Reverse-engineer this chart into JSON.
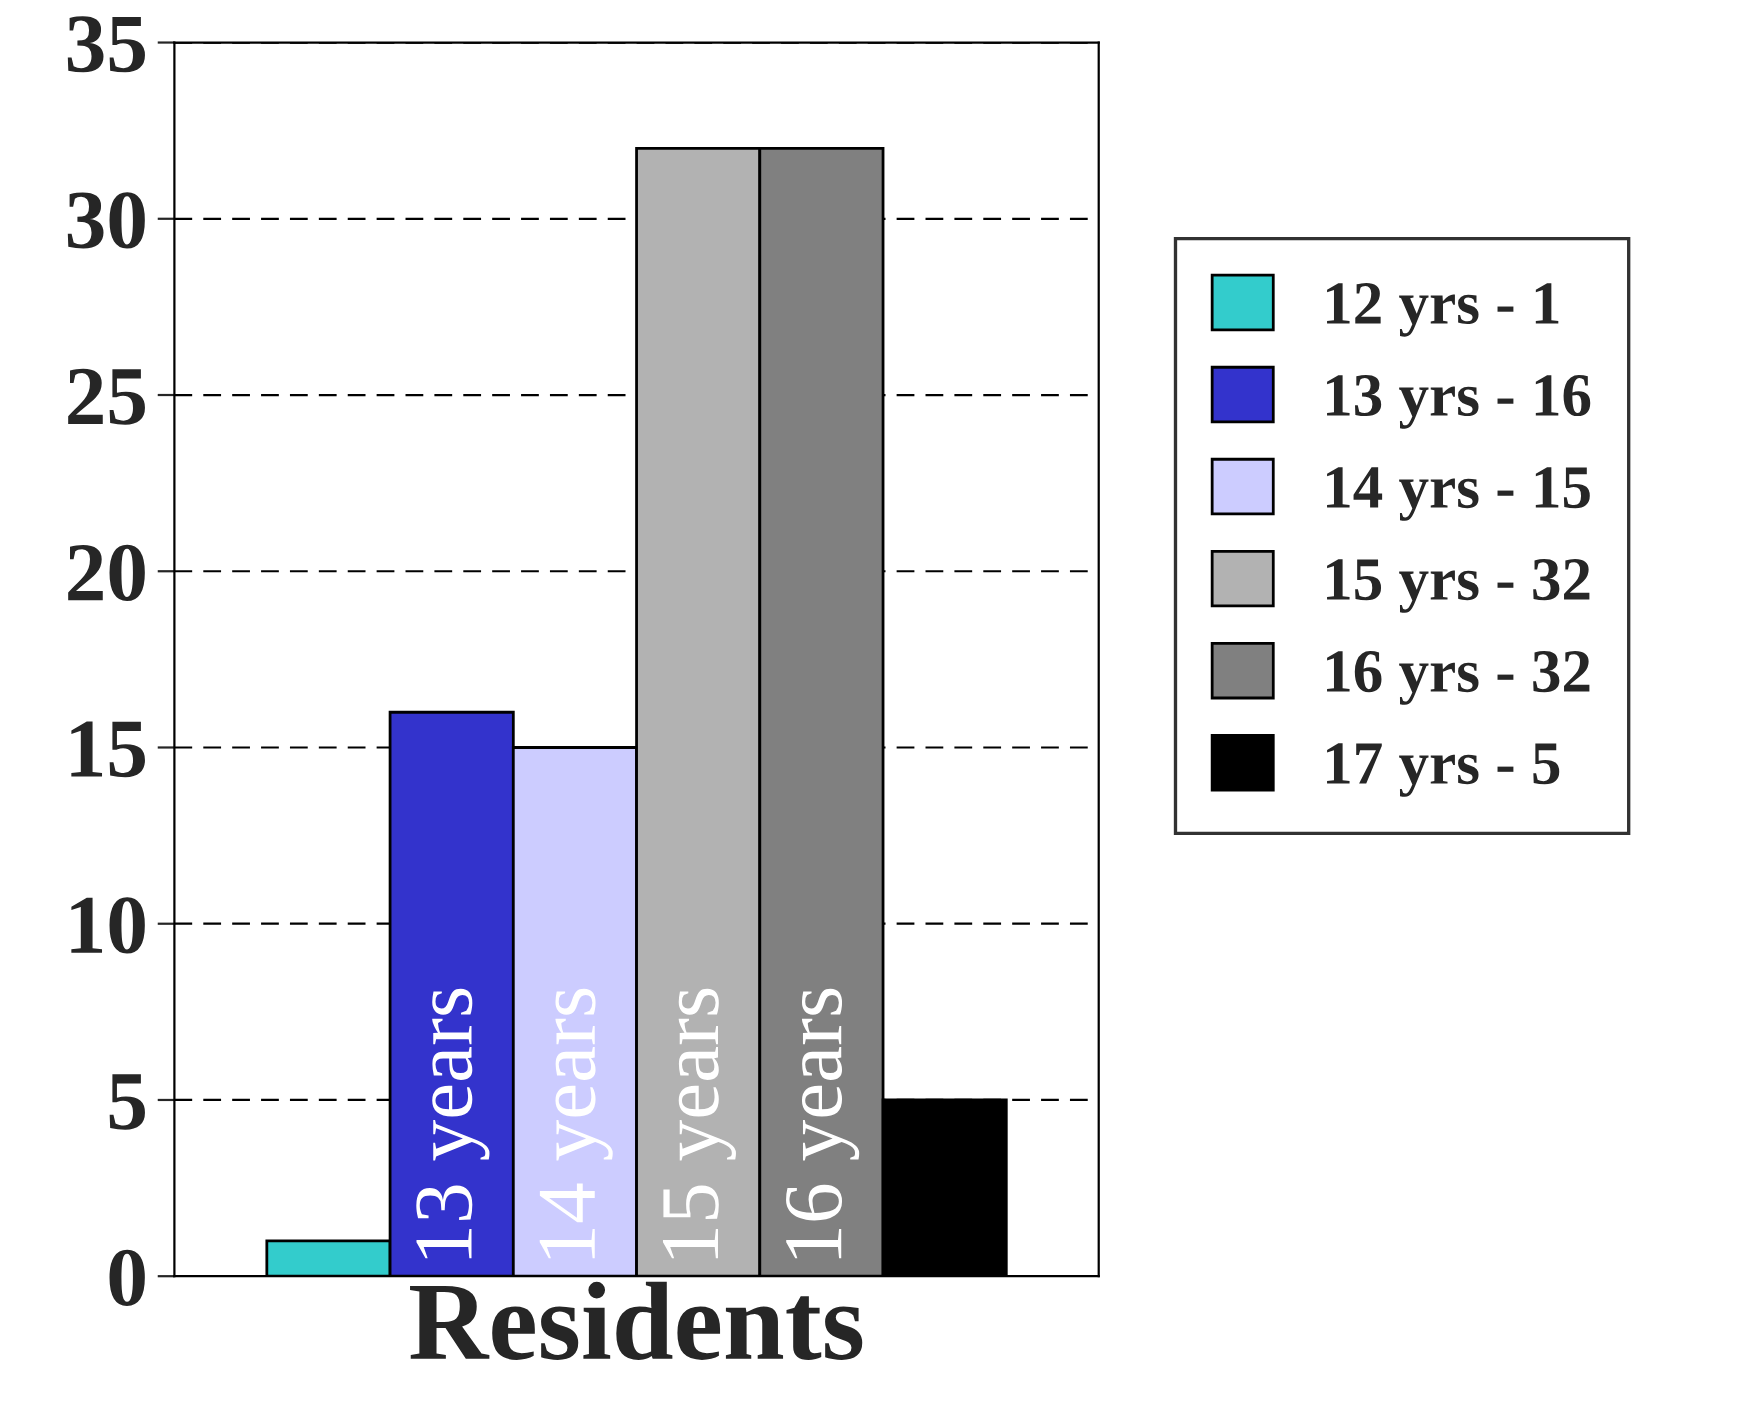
{
  "chart_data": {
    "type": "bar",
    "categories": [
      "Residents"
    ],
    "series": [
      {
        "name": "12 yrs - 1",
        "color": "#33cccc",
        "values": [
          1
        ]
      },
      {
        "name": "13 yrs - 16",
        "color": "#3333cc",
        "values": [
          16
        ]
      },
      {
        "name": "14 yrs - 15",
        "color": "#ccccff",
        "values": [
          15
        ]
      },
      {
        "name": "15 yrs - 32",
        "color": "#b2b2b2",
        "values": [
          32
        ]
      },
      {
        "name": "16 yrs - 32",
        "color": "#808080",
        "values": [
          32
        ]
      },
      {
        "name": "17 yrs - 5",
        "color": "#000000",
        "values": [
          5
        ]
      }
    ],
    "annotations": [
      "13 years",
      "14 years",
      "15 years",
      "16 years"
    ],
    "ylim": [
      0,
      35
    ],
    "yticks": [
      0,
      5,
      10,
      15,
      20,
      25,
      30,
      35
    ],
    "grid": "y",
    "legend": "right",
    "line_style": "dashed"
  }
}
